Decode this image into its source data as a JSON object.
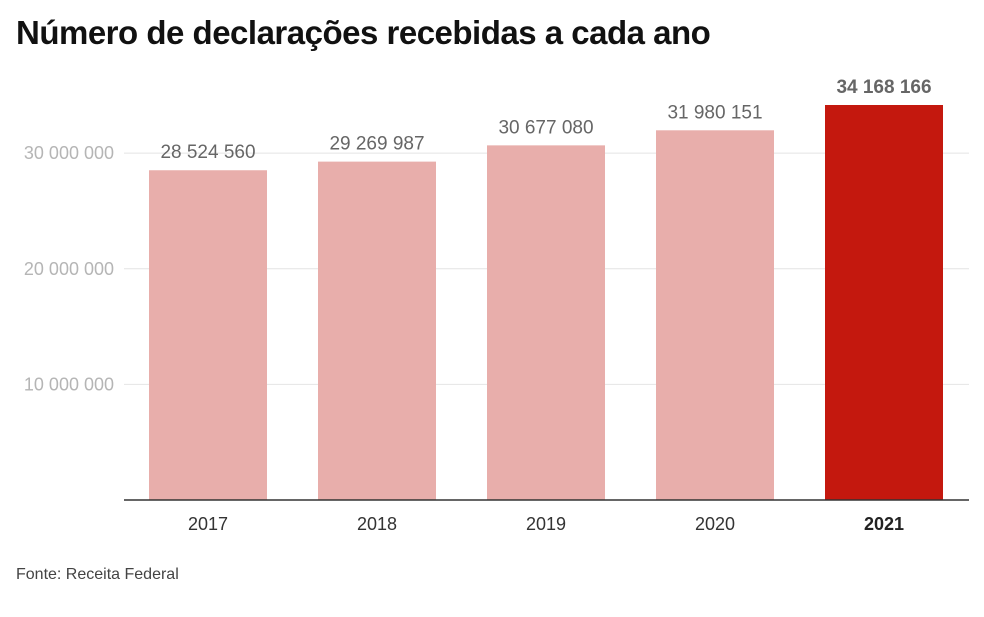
{
  "title": "Número de declarações recebidas a cada ano",
  "source": "Fonte: Receita Federal",
  "colors": {
    "bar": "#e8aeab",
    "bar_highlight": "#c4180e",
    "grid": "#e4e4e4",
    "axis": "#333333"
  },
  "chart_data": {
    "type": "bar",
    "title": "Número de declarações recebidas a cada ano",
    "categories": [
      "2017",
      "2018",
      "2019",
      "2020",
      "2021"
    ],
    "values": [
      28524560,
      29269987,
      30677080,
      31980151,
      34168166
    ],
    "value_labels": [
      "28 524 560",
      "29 269 987",
      "30 677 080",
      "31 980 151",
      "34 168 166"
    ],
    "highlight_index": 4,
    "ylim": [
      0,
      34168166
    ],
    "yticks": [
      10000000,
      20000000,
      30000000
    ],
    "ytick_labels": [
      "10 000 000",
      "20 000 000",
      "30 000 000"
    ],
    "grid": true,
    "xlabel": "",
    "ylabel": ""
  }
}
